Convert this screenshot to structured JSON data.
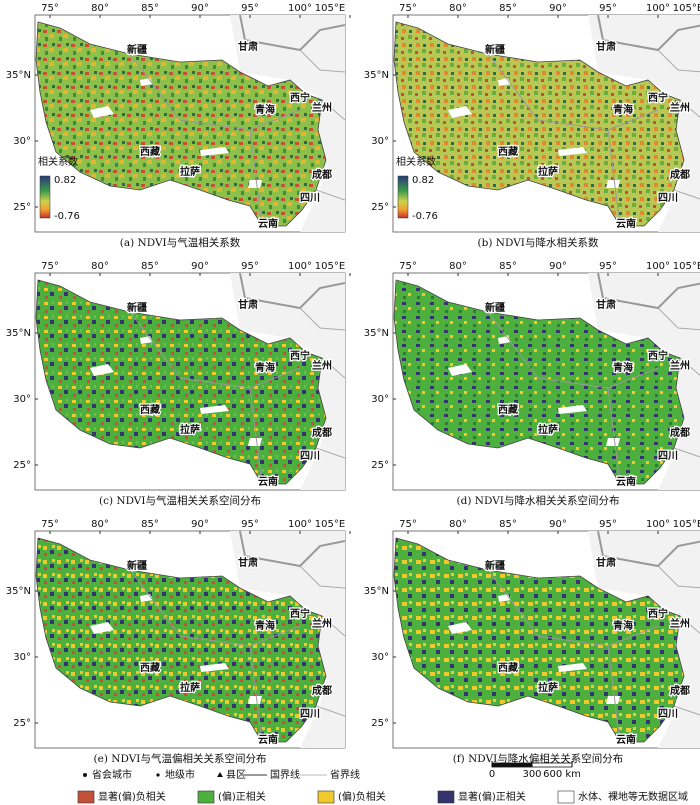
{
  "panels": [
    {
      "caption": "(a) NDVI与气温相关系数",
      "colorbar": {
        "title": "相关系数",
        "max": 0.82,
        "min": -0.76
      }
    },
    {
      "caption": "(b) NDVI与降水相关系数",
      "colorbar": {
        "title": "相关系数",
        "max": 0.82,
        "min": -0.76
      }
    },
    {
      "caption": "(c) NDVI与气温相关关系空间分布"
    },
    {
      "caption": "(d) NDVI与降水相关关系空间分布"
    },
    {
      "caption": "(e) NDVI与气温偏相关关系空间分布"
    },
    {
      "caption": "(f) NDVI与降水偏相关关系空间分布"
    }
  ],
  "lon_ticks": [
    {
      "value": 75,
      "label": "75°"
    },
    {
      "value": 80,
      "label": "80°"
    },
    {
      "value": 85,
      "label": "85°"
    },
    {
      "value": 90,
      "label": "90°"
    },
    {
      "value": 95,
      "label": "95°"
    },
    {
      "value": 100,
      "label": "100°"
    },
    {
      "value": 105,
      "label": "105°E"
    }
  ],
  "lat_ticks": [
    {
      "value": 35,
      "label": "35°N"
    },
    {
      "value": 30,
      "label": "30°"
    },
    {
      "value": 25,
      "label": "25°"
    }
  ],
  "places": [
    "新疆",
    "甘肃",
    "青海",
    "西宁",
    "兰州",
    "西藏",
    "拉萨",
    "成都",
    "四川",
    "云南"
  ],
  "legend": {
    "points": [
      "省会城市",
      "地级市",
      "县区"
    ],
    "lines": [
      "国界线",
      "省界线"
    ],
    "classes": [
      {
        "label": "显著(偏)负相关",
        "color": "#c4503a"
      },
      {
        "label": "(偏)正相关",
        "color": "#4caf3e"
      },
      {
        "label": "(偏)负相关",
        "color": "#f0c92e"
      },
      {
        "label": "显著(偏)正相关",
        "color": "#34346e"
      },
      {
        "label": "水体、裸地等无数据区域",
        "color": "#ffffff"
      }
    ]
  },
  "scale_bar": [
    0,
    300,
    {
      "value": 600,
      "label": "600 km"
    }
  ]
}
